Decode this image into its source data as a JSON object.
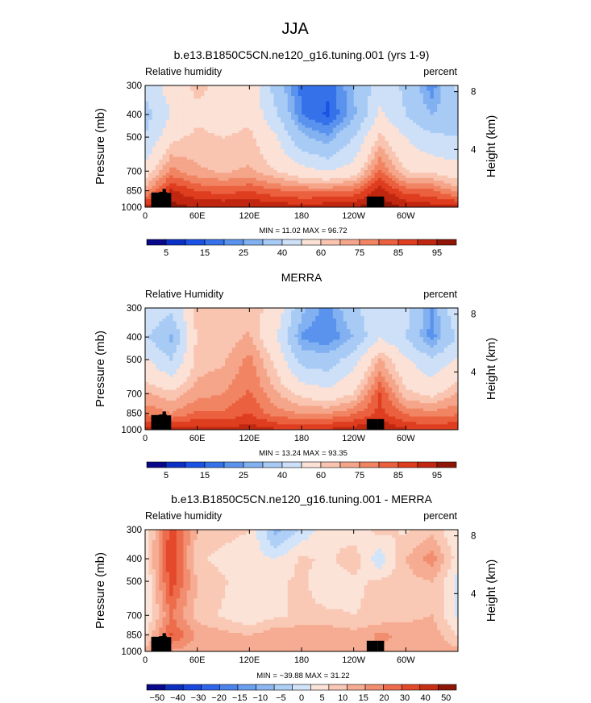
{
  "figure": {
    "title": "JJA",
    "x_ticks": [
      "0",
      "60E",
      "120E",
      "180",
      "120W",
      "60W"
    ],
    "x_tick_values": [
      0,
      60,
      120,
      180,
      240,
      300
    ],
    "p_ticks": [
      "300",
      "400",
      "500",
      "700",
      "850",
      "1000"
    ],
    "p_tick_values": [
      300,
      400,
      500,
      700,
      850,
      1000
    ],
    "z_ticks": [
      "8",
      "4"
    ],
    "z_tick_values": [
      8,
      4
    ],
    "ylabel": "Pressure (mb)",
    "ylabel_right": "Height (km)"
  },
  "panels": [
    {
      "title": "b.e13.B1850C5CN.ne120_g16.tuning.001 (yrs 1-9)",
      "left_label": "Relative humidity",
      "right_label": "percent",
      "stats": "MIN =   11.02   MAX =   96.72",
      "colorbar_labels": [
        "5",
        "15",
        "25",
        "40",
        "60",
        "75",
        "85",
        "95"
      ]
    },
    {
      "title": "MERRA",
      "left_label": "Relative Humidity",
      "right_label": "percent",
      "stats": "MIN =   13.24   MAX =   93.35",
      "colorbar_labels": [
        "5",
        "15",
        "25",
        "40",
        "60",
        "75",
        "85",
        "95"
      ]
    },
    {
      "title": "b.e13.B1850C5CN.ne120_g16.tuning.001 - MERRA",
      "left_label": "Relative humidity",
      "right_label": "percent",
      "stats": "MIN = −39.88   MAX =   31.22",
      "colorbar_labels": [
        "−50",
        "−40",
        "−30",
        "−20",
        "−15",
        "−10",
        "−5",
        "0",
        "5",
        "10",
        "15",
        "20",
        "30",
        "40",
        "50"
      ]
    }
  ],
  "chart_data": [
    {
      "type": "heatmap",
      "title": "b.e13.B1850C5CN.ne120_g16.tuning.001 (yrs 1-9)",
      "variable": "Relative humidity",
      "units": "percent",
      "x": [
        0,
        30,
        60,
        90,
        120,
        150,
        180,
        210,
        240,
        270,
        300,
        330
      ],
      "y_pressure": [
        300,
        400,
        500,
        700,
        850,
        1000
      ],
      "z": [
        [
          42,
          55,
          62,
          58,
          57,
          36,
          18,
          16,
          30,
          45,
          38,
          22
        ],
        [
          36,
          50,
          58,
          55,
          58,
          42,
          20,
          14,
          28,
          52,
          40,
          30
        ],
        [
          40,
          58,
          62,
          60,
          62,
          52,
          32,
          26,
          40,
          62,
          50,
          42
        ],
        [
          55,
          72,
          66,
          64,
          66,
          60,
          54,
          50,
          55,
          76,
          60,
          58
        ],
        [
          68,
          86,
          80,
          78,
          80,
          76,
          74,
          74,
          76,
          88,
          78,
          76
        ],
        [
          88,
          92,
          90,
          90,
          90,
          89,
          88,
          89,
          90,
          94,
          90,
          88
        ]
      ],
      "stats": {
        "min": 11.02,
        "max": 96.72
      },
      "colorbar": {
        "levels": [
          5,
          10,
          15,
          20,
          25,
          30,
          40,
          50,
          60,
          65,
          70,
          75,
          80,
          85,
          90,
          95
        ]
      }
    },
    {
      "type": "heatmap",
      "title": "MERRA",
      "variable": "Relative Humidity",
      "units": "percent",
      "x": [
        0,
        30,
        60,
        90,
        120,
        150,
        180,
        210,
        240,
        270,
        300,
        330
      ],
      "y_pressure": [
        300,
        400,
        500,
        700,
        850,
        1000
      ],
      "z": [
        [
          50,
          42,
          62,
          60,
          62,
          58,
          32,
          22,
          38,
          48,
          44,
          24
        ],
        [
          42,
          28,
          62,
          62,
          66,
          52,
          24,
          20,
          30,
          50,
          40,
          22
        ],
        [
          52,
          40,
          62,
          64,
          72,
          58,
          36,
          34,
          46,
          66,
          52,
          42
        ],
        [
          66,
          62,
          68,
          70,
          76,
          66,
          58,
          54,
          60,
          80,
          62,
          58
        ],
        [
          74,
          70,
          76,
          76,
          80,
          72,
          70,
          70,
          74,
          82,
          74,
          72
        ],
        [
          86,
          88,
          88,
          86,
          88,
          86,
          86,
          86,
          88,
          90,
          86,
          84
        ]
      ],
      "stats": {
        "min": 13.24,
        "max": 93.35
      },
      "colorbar": {
        "levels": [
          5,
          10,
          15,
          20,
          25,
          30,
          40,
          50,
          60,
          65,
          70,
          75,
          80,
          85,
          90,
          95
        ]
      }
    },
    {
      "type": "heatmap",
      "title": "b.e13.B1850C5CN.ne120_g16.tuning.001 - MERRA",
      "variable": "Relative humidity",
      "units": "percent",
      "x": [
        0,
        30,
        60,
        90,
        120,
        150,
        180,
        210,
        240,
        270,
        300,
        330
      ],
      "y_pressure": [
        300,
        400,
        500,
        700,
        850,
        1000
      ],
      "z": [
        [
          -10,
          18,
          0,
          -3,
          -5,
          -22,
          -14,
          -6,
          -8,
          -3,
          -6,
          -2
        ],
        [
          -8,
          20,
          -4,
          -7,
          -8,
          -10,
          -4,
          -6,
          -2,
          -14,
          0,
          8
        ],
        [
          -12,
          18,
          0,
          -4,
          -10,
          -6,
          -4,
          -8,
          -6,
          -4,
          -2,
          0
        ],
        [
          -11,
          10,
          -2,
          -6,
          -10,
          -6,
          -4,
          -4,
          -5,
          -4,
          -2,
          0
        ],
        [
          -6,
          16,
          4,
          2,
          0,
          4,
          4,
          4,
          2,
          6,
          4,
          4
        ],
        [
          2,
          4,
          2,
          4,
          2,
          3,
          2,
          3,
          2,
          4,
          4,
          4
        ]
      ],
      "stats": {
        "min": -39.88,
        "max": 31.22
      },
      "colorbar": {
        "levels": [
          -50,
          -45,
          -40,
          -35,
          -30,
          -25,
          -20,
          -15,
          -10,
          -5,
          0,
          5,
          10,
          15,
          20,
          25,
          30,
          40,
          50
        ]
      }
    }
  ],
  "colors": {
    "abs_palette": [
      "#08088a",
      "#0c30c6",
      "#1b52e4",
      "#3572ea",
      "#5a93ee",
      "#82b1f1",
      "#a8cbf5",
      "#cde0f8",
      "#fbe1d6",
      "#f9c4b0",
      "#f5a589",
      "#f18462",
      "#eb603e",
      "#de3e1f",
      "#c02610",
      "#8f1607"
    ],
    "diff_palette": [
      "#08088a",
      "#0c2fc0",
      "#1a48de",
      "#2f65e8",
      "#4b82ec",
      "#6a9eef",
      "#8cb7f2",
      "#aecff6",
      "#d1e4f9",
      "#fbe3d8",
      "#f9c9b5",
      "#f6ac92",
      "#f28e70",
      "#ed6c4c",
      "#e3492a",
      "#c83014",
      "#8f1607"
    ]
  }
}
